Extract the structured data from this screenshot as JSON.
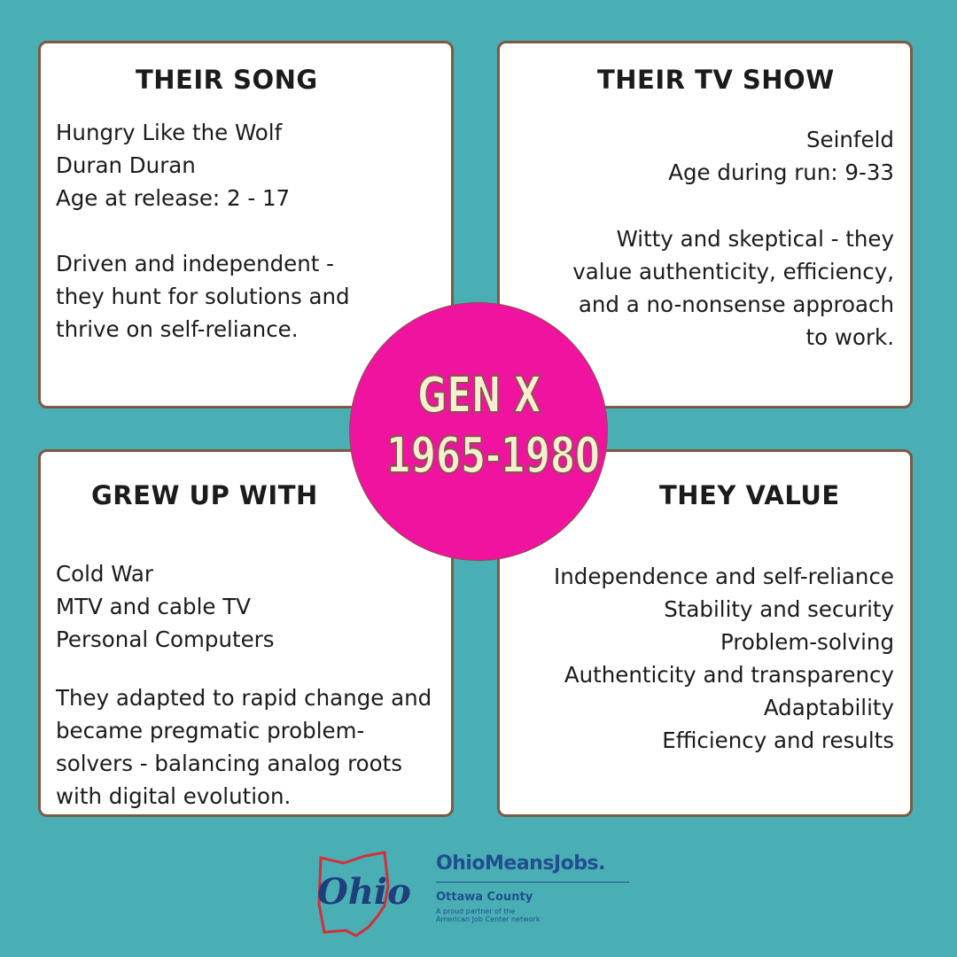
{
  "panels": [
    {
      "title": "THEIR SONG",
      "lines": [
        "Hungry Like the Wolf",
        "Duran Duran",
        "Age at release: 2 - 17"
      ],
      "description": [
        "Driven and independent -",
        "they hunt for solutions and",
        "thrive on self-reliance."
      ]
    },
    {
      "title": "THEIR TV SHOW",
      "lines": [
        "Seinfeld",
        "Age during run: 9-33"
      ],
      "description": [
        "Witty and skeptical - they",
        "value authenticity, efficiency,",
        "and a no-nonsense approach",
        "to work."
      ]
    },
    {
      "title": "GREW UP WITH",
      "lines": [
        "Cold War",
        "MTV and cable TV",
        "Personal Computers"
      ],
      "description": [
        "They adapted to rapid change and",
        "became pregmatic problem-",
        "solvers - balancing analog roots",
        "with digital evolution."
      ]
    },
    {
      "title": "THEY VALUE",
      "lines": [
        "Independence and self-reliance",
        "Stability and security",
        "Problem-solving",
        "Authenticity and transparency",
        "Adaptability",
        "Efficiency and results"
      ]
    }
  ],
  "center": {
    "title": "GEN X",
    "years": "1965-1980"
  },
  "footer": {
    "logo": "Ohio",
    "brand": "OhioMeansJobs.",
    "county": "Ottawa County",
    "tagline": [
      "A proud partner of the",
      "American Job Center network"
    ]
  }
}
